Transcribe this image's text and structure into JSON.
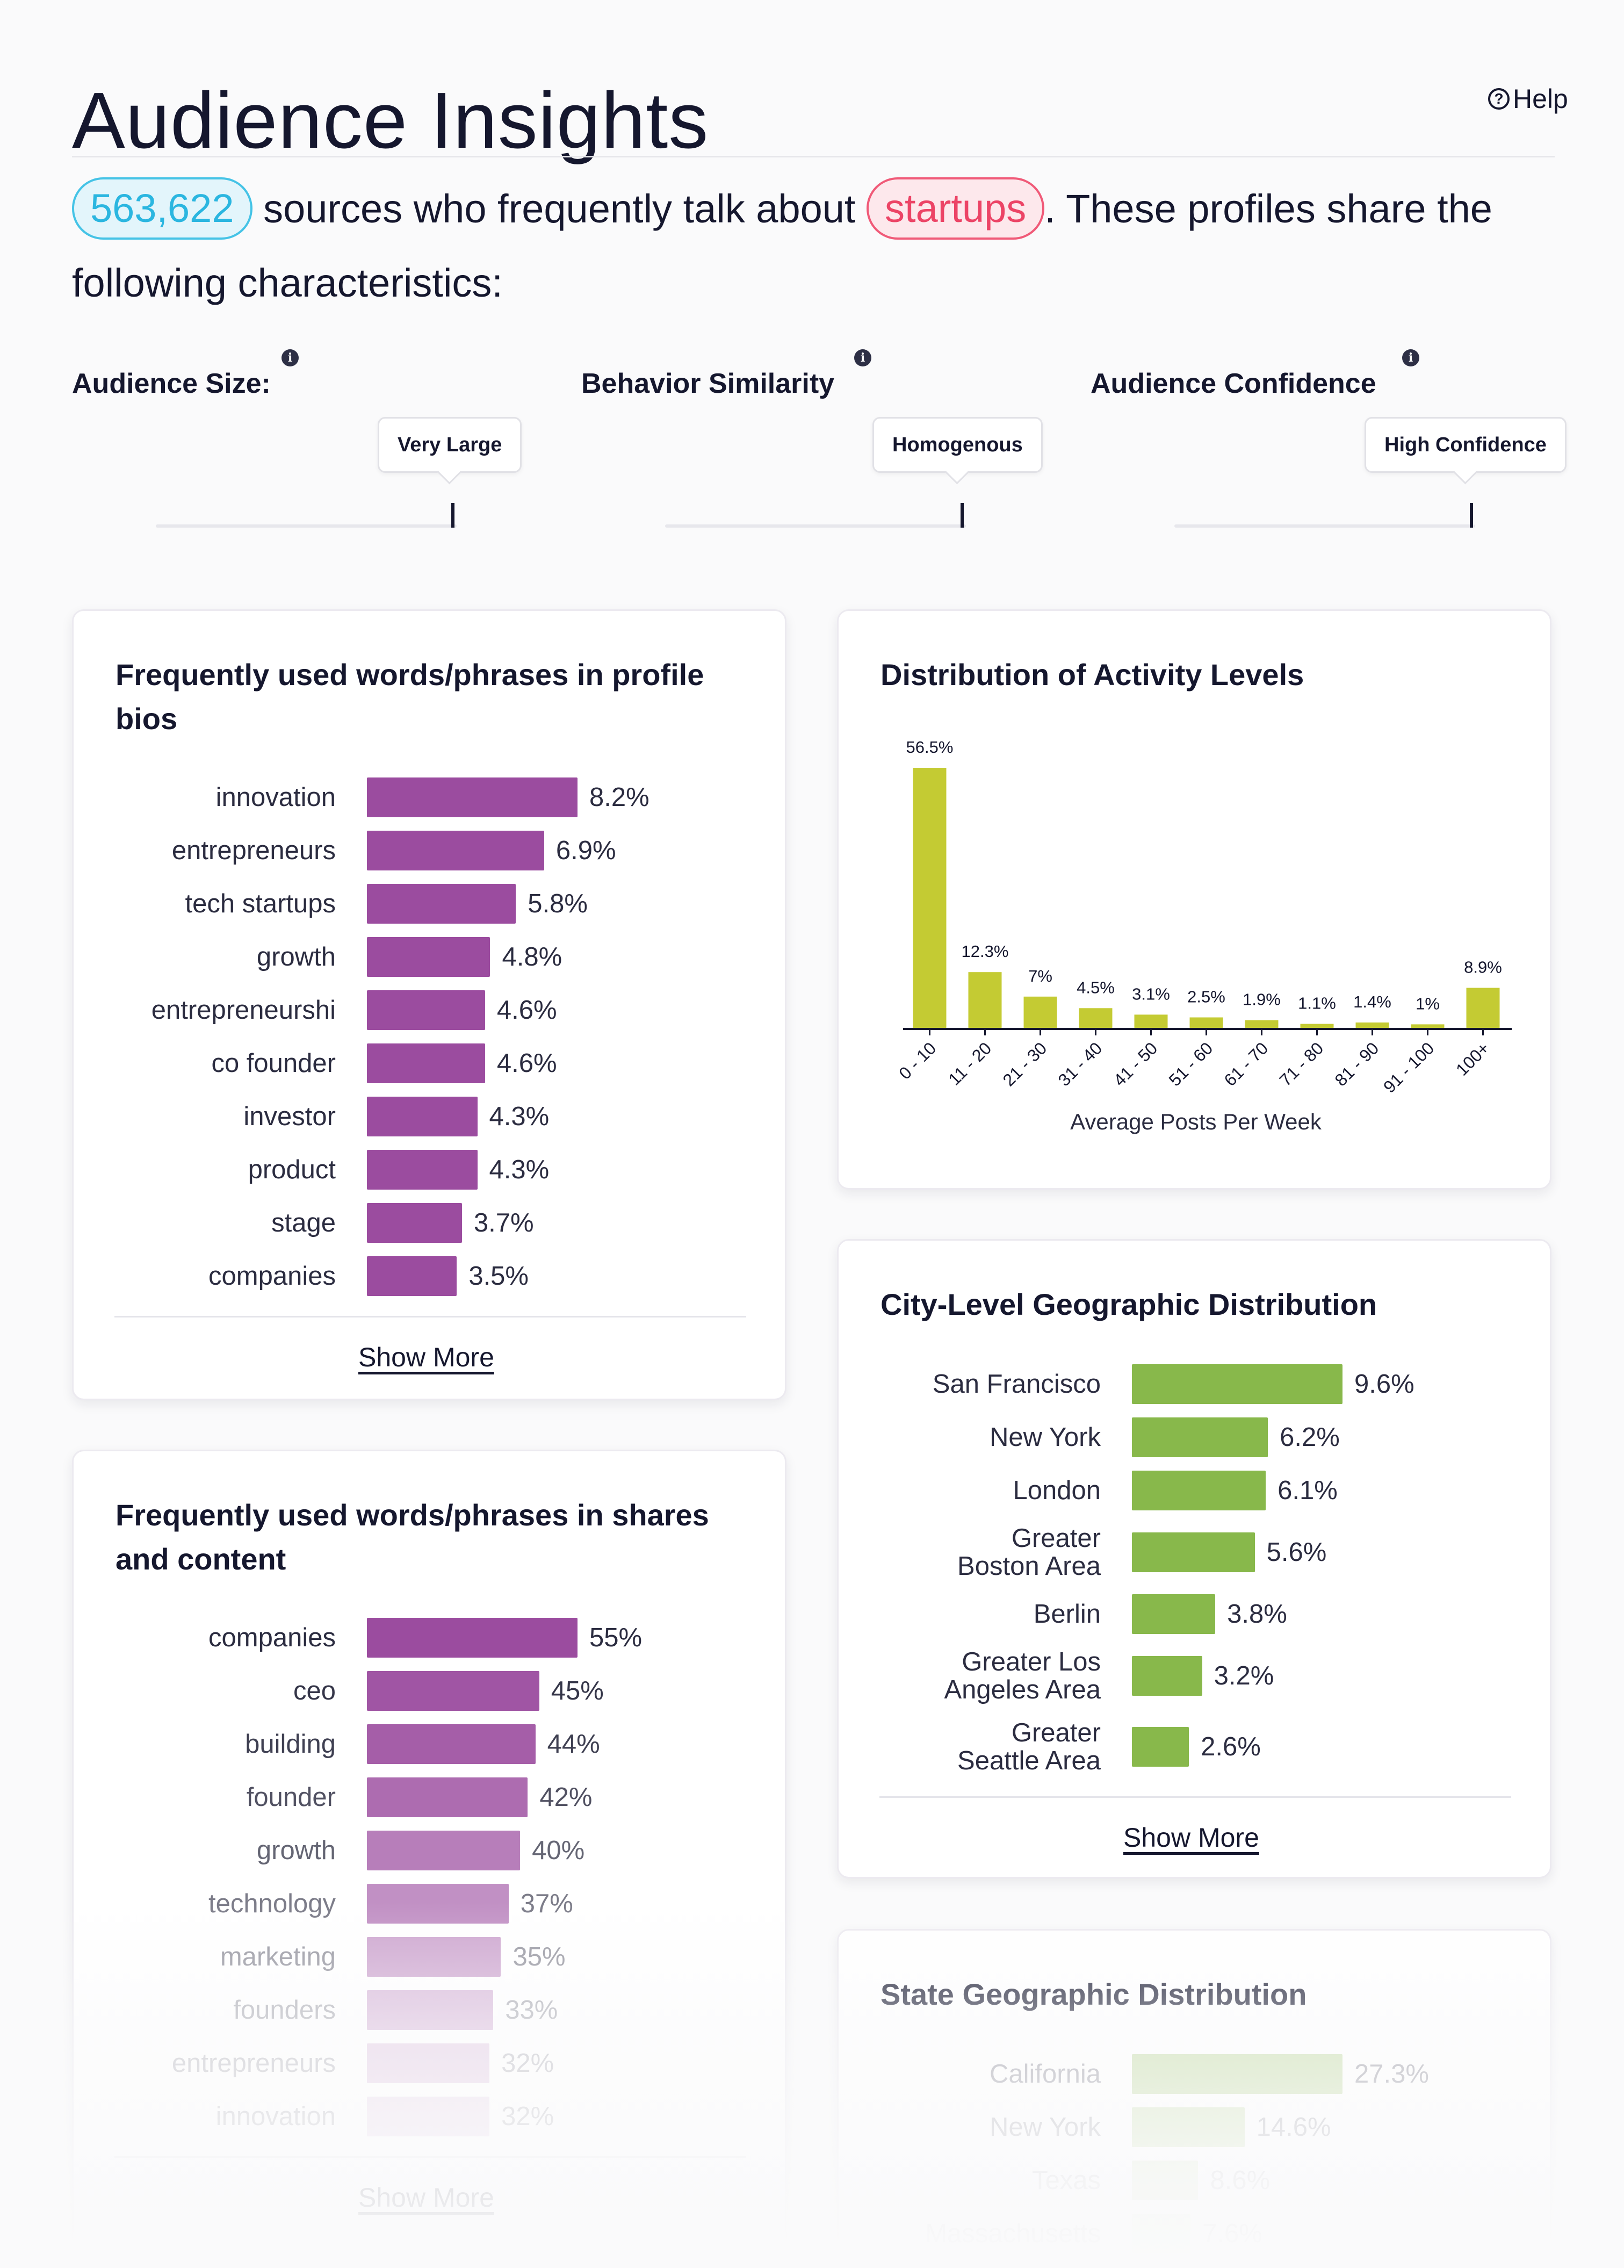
{
  "header": {
    "title": "Audience Insights",
    "help_label": "Help",
    "help_icon": "question-circle-icon"
  },
  "intro": {
    "count": "563,622",
    "text_before": "sources who frequently talk about",
    "topic": "startups",
    "text_after": ". These profiles share the following characteristics:"
  },
  "characteristics": [
    {
      "label": "Audience Size:",
      "value": "Very Large"
    },
    {
      "label": "Behavior Similarity",
      "value": "Homogenous"
    },
    {
      "label": "Audience Confidence",
      "value": "High Confidence"
    }
  ],
  "bios_card": {
    "title": "Frequently used words/phrases in profile bios",
    "show_more": "Show More",
    "items": [
      {
        "label": "innovation",
        "value": 8.2,
        "display": "8.2%"
      },
      {
        "label": "entrepreneurs",
        "value": 6.9,
        "display": "6.9%"
      },
      {
        "label": "tech startups",
        "value": 5.8,
        "display": "5.8%"
      },
      {
        "label": "growth",
        "value": 4.8,
        "display": "4.8%"
      },
      {
        "label": "entrepreneurshi",
        "value": 4.6,
        "display": "4.6%"
      },
      {
        "label": "co founder",
        "value": 4.6,
        "display": "4.6%"
      },
      {
        "label": "investor",
        "value": 4.3,
        "display": "4.3%"
      },
      {
        "label": "product",
        "value": 4.3,
        "display": "4.3%"
      },
      {
        "label": "stage",
        "value": 3.7,
        "display": "3.7%"
      },
      {
        "label": "companies",
        "value": 3.5,
        "display": "3.5%"
      }
    ],
    "bar_color": "#9b4c9f"
  },
  "shares_card": {
    "title": "Frequently used words/phrases in shares and content",
    "show_more": "Show More",
    "items": [
      {
        "label": "companies",
        "value": 55,
        "display": "55%"
      },
      {
        "label": "ceo",
        "value": 45,
        "display": "45%"
      },
      {
        "label": "building",
        "value": 44,
        "display": "44%"
      },
      {
        "label": "founder",
        "value": 42,
        "display": "42%"
      },
      {
        "label": "growth",
        "value": 40,
        "display": "40%"
      },
      {
        "label": "technology",
        "value": 37,
        "display": "37%"
      },
      {
        "label": "marketing",
        "value": 35,
        "display": "35%"
      },
      {
        "label": "founders",
        "value": 33,
        "display": "33%"
      },
      {
        "label": "entrepreneurs",
        "value": 32,
        "display": "32%"
      },
      {
        "label": "innovation",
        "value": 32,
        "display": "32%"
      }
    ],
    "bar_color": "#9b4c9f"
  },
  "activity_card": {
    "title": "Distribution of Activity Levels",
    "bar_color": "#c4cb33"
  },
  "chart_data": {
    "type": "bar",
    "title": "Distribution of Activity Levels",
    "xlabel": "Average Posts Per Week",
    "ylabel": "",
    "categories": [
      "0 - 10",
      "11 - 20",
      "21 - 30",
      "31 - 40",
      "41 - 50",
      "51 - 60",
      "61 - 70",
      "71 - 80",
      "81 - 90",
      "91 - 100",
      "100+"
    ],
    "values": [
      56.5,
      12.3,
      7,
      4.5,
      3.1,
      2.5,
      1.9,
      1.1,
      1.4,
      1,
      8.9
    ],
    "value_labels": [
      "56.5%",
      "12.3%",
      "7%",
      "4.5%",
      "3.1%",
      "2.5%",
      "1.9%",
      "1.1%",
      "1.4%",
      "1%",
      "8.9%"
    ],
    "ylim": [
      0,
      56.5
    ]
  },
  "city_card": {
    "title": "City-Level Geographic Distribution",
    "show_more": "Show More",
    "items": [
      {
        "label": "San Francisco",
        "value": 9.6,
        "display": "9.6%"
      },
      {
        "label": "New York",
        "value": 6.2,
        "display": "6.2%"
      },
      {
        "label": "London",
        "value": 6.1,
        "display": "6.1%"
      },
      {
        "label": "Greater Boston Area",
        "value": 5.6,
        "display": "5.6%"
      },
      {
        "label": "Berlin",
        "value": 3.8,
        "display": "3.8%"
      },
      {
        "label": "Greater Los Angeles Area",
        "value": 3.2,
        "display": "3.2%"
      },
      {
        "label": "Greater Seattle Area",
        "value": 2.6,
        "display": "2.6%"
      }
    ],
    "bar_color": "#88b84b"
  },
  "state_card": {
    "title": "State Geographic Distribution",
    "items": [
      {
        "label": "California",
        "value": 27.3,
        "display": "27.3%"
      },
      {
        "label": "New York",
        "value": 14.6,
        "display": "14.6%"
      },
      {
        "label": "Texas",
        "value": 8.6,
        "display": "8.6%"
      },
      {
        "label": "Massachusetts",
        "value": 7.6,
        "display": "7.6%"
      }
    ],
    "bar_color": "#88b84b"
  },
  "colors": {
    "text": "#15172e",
    "count_accent": "#2bb6e0",
    "topic_accent": "#ec4466",
    "bio_bar": "#9b4c9f",
    "activity_bar": "#c4cb33",
    "geo_bar": "#88b84b"
  }
}
